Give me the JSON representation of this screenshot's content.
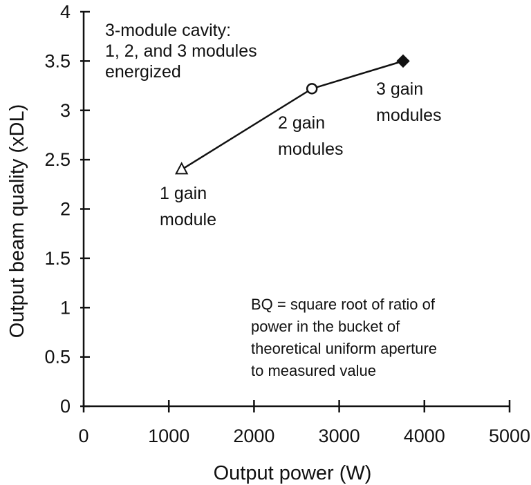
{
  "chart_data": {
    "type": "line",
    "xlabel": "Output power (W)",
    "ylabel": "Output beam quality (xDL)",
    "xlim": [
      0,
      5000
    ],
    "ylim": [
      0,
      4
    ],
    "x_ticks": [
      "0",
      "1000",
      "2000",
      "3000",
      "4000",
      "5000"
    ],
    "y_ticks": [
      "0",
      "0.5",
      "1",
      "1.5",
      "2",
      "2.5",
      "3",
      "3.5",
      "4"
    ],
    "grid": false,
    "series": [
      {
        "x": [
          1150,
          2680,
          3750
        ],
        "y": [
          2.4,
          3.22,
          3.5
        ],
        "markers": [
          "open-triangle",
          "open-circle",
          "filled-diamond"
        ],
        "color": "#111111"
      }
    ],
    "annotations": [
      {
        "lines": [
          "3-module cavity:",
          "1, 2, and 3 modules",
          "energized"
        ]
      },
      {
        "lines": [
          "1 gain",
          "module"
        ]
      },
      {
        "lines": [
          "2 gain",
          "modules"
        ]
      },
      {
        "lines": [
          "3 gain",
          "modules"
        ]
      },
      {
        "lines": [
          "BQ = square root of ratio of",
          "power in the bucket of",
          "theoretical uniform aperture",
          "to measured value"
        ]
      }
    ]
  }
}
